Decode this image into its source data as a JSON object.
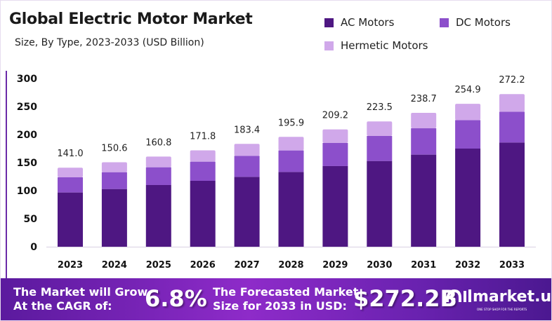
{
  "chart_data": {
    "type": "bar",
    "stacked": true,
    "title": "Global Electric Motor Market",
    "subtitle": "Size, By Type, 2023-2033 (USD Billion)",
    "xlabel": "",
    "ylabel": "",
    "ylim": [
      0,
      300
    ],
    "yticks": [
      0,
      50,
      100,
      150,
      200,
      250,
      300
    ],
    "grid": false,
    "legend_position": "top-right",
    "categories": [
      "2023",
      "2024",
      "2025",
      "2026",
      "2027",
      "2028",
      "2029",
      "2030",
      "2031",
      "2032",
      "2033"
    ],
    "series": [
      {
        "name": "AC Motors",
        "color": "#4e1782",
        "values": [
          96.7,
          102.9,
          110.0,
          117.5,
          124.6,
          133.3,
          143.8,
          152.9,
          164.2,
          175.0,
          185.8
        ]
      },
      {
        "name": "DC Motors",
        "color": "#8c4fcb",
        "values": [
          27.1,
          30.0,
          31.7,
          34.2,
          37.5,
          38.4,
          41.2,
          44.6,
          47.0,
          50.8,
          55.0
        ]
      },
      {
        "name": "Hermetic Motors",
        "color": "#d0a8ea",
        "values": [
          17.2,
          17.7,
          19.1,
          20.1,
          21.3,
          24.2,
          24.2,
          26.0,
          27.5,
          29.1,
          31.4
        ]
      }
    ],
    "totals": [
      "141.0",
      "150.6",
      "160.8",
      "171.8",
      "183.4",
      "195.9",
      "209.2",
      "223.5",
      "238.7",
      "254.9",
      "272.2"
    ]
  },
  "banner": {
    "cagr_text_line1": "The Market will Grow",
    "cagr_text_line2": "At the CAGR of:",
    "cagr_value": "6.8%",
    "forecast_text_line1": "The Forecasted Market",
    "forecast_text_line2": "Size for 2033 in USD:",
    "forecast_value": "$272.2B",
    "logo_name": "market.us",
    "logo_tagline": "ONE STOP SHOP FOR THE REPORTS"
  }
}
